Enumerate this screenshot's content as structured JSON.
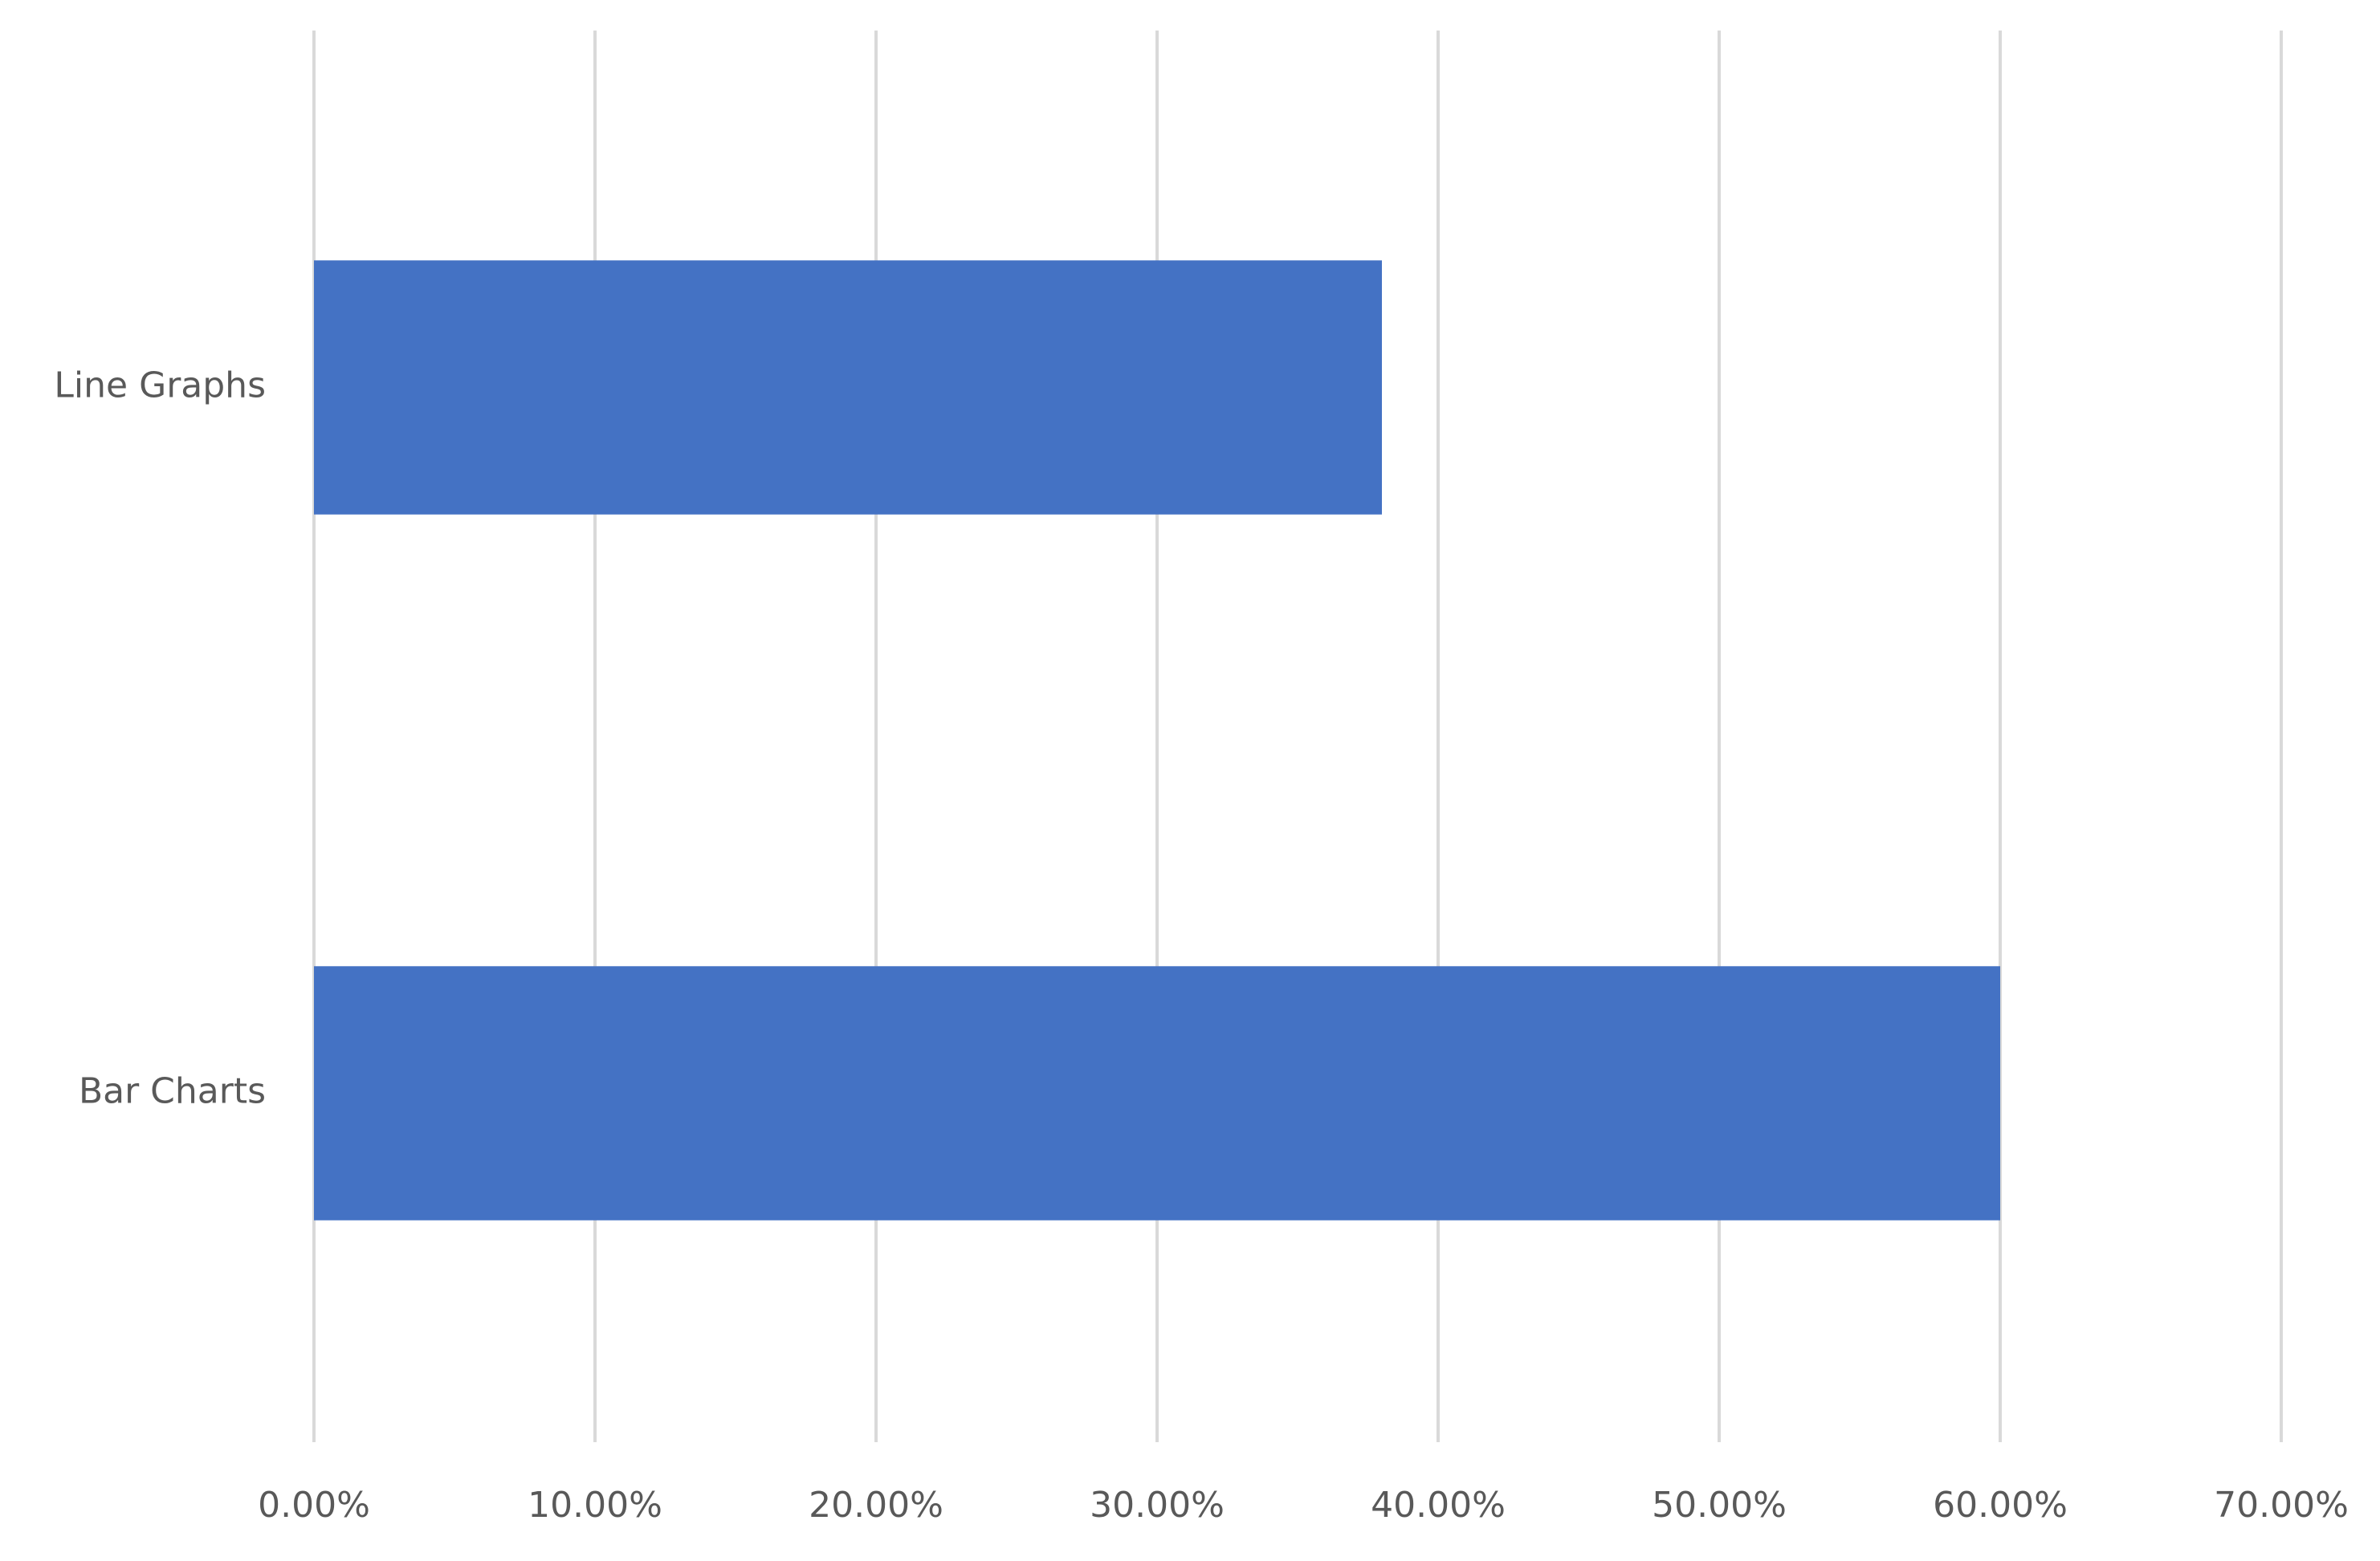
{
  "chart_data": {
    "type": "bar",
    "orientation": "horizontal",
    "categories": [
      "Line Graphs",
      "Bar Charts"
    ],
    "values": [
      38,
      60
    ],
    "color": "#4472c4",
    "xlim": [
      0,
      70
    ],
    "xticks": [
      {
        "value": 0,
        "label": "0.00%"
      },
      {
        "value": 10,
        "label": "10.00%"
      },
      {
        "value": 20,
        "label": "20.00%"
      },
      {
        "value": 30,
        "label": "30.00%"
      },
      {
        "value": 40,
        "label": "40.00%"
      },
      {
        "value": 50,
        "label": "50.00%"
      },
      {
        "value": 60,
        "label": "60.00%"
      },
      {
        "value": 70,
        "label": "70.00%"
      }
    ],
    "grid": true
  }
}
